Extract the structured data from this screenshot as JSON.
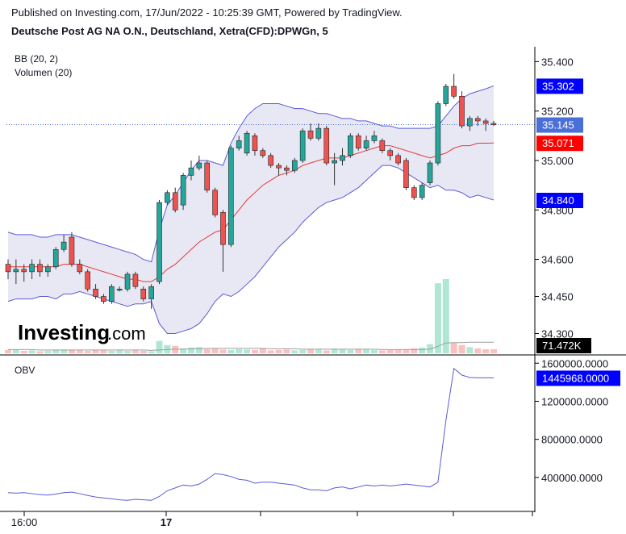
{
  "header": {
    "published": "Published on Investing.com, 17/Jun/2022 - 10:25:39 GMT, Powered by TradingView.",
    "title": "Deutsche Post AG NA O.N., Deutschland, Xetra(CFD):DPWGn, 5"
  },
  "indicators": {
    "bb": "BB (20, 2)",
    "volume": "Volumen (20)",
    "obv": "OBV"
  },
  "logo": {
    "bold": "Investing",
    "light": ".com"
  },
  "chart_data": {
    "type": "candlestick",
    "price_axis": {
      "min": 34.22,
      "max": 35.46,
      "ticks": [
        "35.400",
        "35.200",
        "35.000",
        "34.800",
        "34.600",
        "34.450",
        "34.300"
      ]
    },
    "x_ticks": [
      "16:00",
      "17"
    ],
    "tags": {
      "bb_upper": "35.302",
      "last_price": "35.145",
      "bb_basis": "35.071",
      "bb_lower": "34.840",
      "volume": "71.472K",
      "obv": "1445968.0000"
    },
    "colors": {
      "up": "#26a69a",
      "down": "#ef5350",
      "bb_band": "#5b5bd6",
      "bb_fill": "#e8e8f4",
      "basis": "#e53935",
      "obv": "#5b5bd6",
      "tag_blue": "#0000ff",
      "tag_red": "#ff0000",
      "tag_black": "#000000",
      "tag_last": "#4a6fd8"
    },
    "candles": [
      {
        "o": 34.58,
        "h": 34.6,
        "l": 34.52,
        "c": 34.55
      },
      {
        "o": 34.55,
        "h": 34.6,
        "l": 34.5,
        "c": 34.56
      },
      {
        "o": 34.56,
        "h": 34.58,
        "l": 34.51,
        "c": 34.55
      },
      {
        "o": 34.55,
        "h": 34.6,
        "l": 34.52,
        "c": 34.58
      },
      {
        "o": 34.58,
        "h": 34.6,
        "l": 34.53,
        "c": 34.55
      },
      {
        "o": 34.55,
        "h": 34.58,
        "l": 34.53,
        "c": 34.57
      },
      {
        "o": 34.57,
        "h": 34.65,
        "l": 34.56,
        "c": 34.64
      },
      {
        "o": 34.64,
        "h": 34.7,
        "l": 34.63,
        "c": 34.67
      },
      {
        "o": 34.69,
        "h": 34.71,
        "l": 34.57,
        "c": 34.58
      },
      {
        "o": 34.58,
        "h": 34.6,
        "l": 34.54,
        "c": 34.55
      },
      {
        "o": 34.55,
        "h": 34.56,
        "l": 34.47,
        "c": 34.48
      },
      {
        "o": 34.48,
        "h": 34.5,
        "l": 34.44,
        "c": 34.45
      },
      {
        "o": 34.45,
        "h": 34.46,
        "l": 34.42,
        "c": 34.43
      },
      {
        "o": 34.43,
        "h": 34.5,
        "l": 34.42,
        "c": 34.49
      },
      {
        "o": 34.48,
        "h": 34.49,
        "l": 34.47,
        "c": 34.48
      },
      {
        "o": 34.48,
        "h": 34.55,
        "l": 34.47,
        "c": 34.54
      },
      {
        "o": 34.54,
        "h": 34.55,
        "l": 34.48,
        "c": 34.49
      },
      {
        "o": 34.48,
        "h": 34.49,
        "l": 34.43,
        "c": 34.44
      },
      {
        "o": 34.44,
        "h": 34.5,
        "l": 34.4,
        "c": 34.49
      },
      {
        "o": 34.51,
        "h": 34.84,
        "l": 34.5,
        "c": 34.83
      },
      {
        "o": 34.83,
        "h": 34.88,
        "l": 34.82,
        "c": 34.87
      },
      {
        "o": 34.87,
        "h": 34.89,
        "l": 34.79,
        "c": 34.8
      },
      {
        "o": 34.82,
        "h": 34.95,
        "l": 34.8,
        "c": 34.94
      },
      {
        "o": 34.94,
        "h": 35.0,
        "l": 34.92,
        "c": 34.97
      },
      {
        "o": 34.97,
        "h": 35.02,
        "l": 34.96,
        "c": 34.99
      },
      {
        "o": 34.99,
        "h": 35.0,
        "l": 34.87,
        "c": 34.88
      },
      {
        "o": 34.88,
        "h": 34.89,
        "l": 34.77,
        "c": 34.78
      },
      {
        "o": 34.79,
        "h": 34.8,
        "l": 34.55,
        "c": 34.66
      },
      {
        "o": 34.66,
        "h": 35.06,
        "l": 34.65,
        "c": 35.05
      },
      {
        "o": 35.05,
        "h": 35.1,
        "l": 35.04,
        "c": 35.08
      },
      {
        "o": 35.03,
        "h": 35.12,
        "l": 35.02,
        "c": 35.11
      },
      {
        "o": 35.1,
        "h": 35.11,
        "l": 35.02,
        "c": 35.04
      },
      {
        "o": 35.04,
        "h": 35.05,
        "l": 35.01,
        "c": 35.02
      },
      {
        "o": 35.02,
        "h": 35.03,
        "l": 34.97,
        "c": 34.98
      },
      {
        "o": 34.98,
        "h": 34.99,
        "l": 34.94,
        "c": 34.97
      },
      {
        "o": 34.97,
        "h": 34.98,
        "l": 34.94,
        "c": 34.96
      },
      {
        "o": 34.96,
        "h": 35.01,
        "l": 34.95,
        "c": 35.0
      },
      {
        "o": 35.0,
        "h": 35.13,
        "l": 34.99,
        "c": 35.12
      },
      {
        "o": 35.12,
        "h": 35.15,
        "l": 35.08,
        "c": 35.09
      },
      {
        "o": 35.09,
        "h": 35.15,
        "l": 35.08,
        "c": 35.13
      },
      {
        "o": 35.13,
        "h": 35.14,
        "l": 34.98,
        "c": 34.99
      },
      {
        "o": 34.99,
        "h": 35.03,
        "l": 34.9,
        "c": 35.0
      },
      {
        "o": 35.0,
        "h": 35.05,
        "l": 34.98,
        "c": 35.02
      },
      {
        "o": 35.02,
        "h": 35.11,
        "l": 35.01,
        "c": 35.1
      },
      {
        "o": 35.1,
        "h": 35.11,
        "l": 35.04,
        "c": 35.05
      },
      {
        "o": 35.05,
        "h": 35.1,
        "l": 35.04,
        "c": 35.08
      },
      {
        "o": 35.08,
        "h": 35.12,
        "l": 35.07,
        "c": 35.1
      },
      {
        "o": 35.08,
        "h": 35.09,
        "l": 35.03,
        "c": 35.04
      },
      {
        "o": 35.04,
        "h": 35.05,
        "l": 35.0,
        "c": 35.02
      },
      {
        "o": 35.02,
        "h": 35.03,
        "l": 34.98,
        "c": 34.99
      },
      {
        "o": 35.0,
        "h": 35.01,
        "l": 34.88,
        "c": 34.89
      },
      {
        "o": 34.89,
        "h": 34.9,
        "l": 34.84,
        "c": 34.85
      },
      {
        "o": 34.85,
        "h": 34.91,
        "l": 34.84,
        "c": 34.9
      },
      {
        "o": 34.91,
        "h": 35.0,
        "l": 34.9,
        "c": 34.99
      },
      {
        "o": 34.99,
        "h": 35.24,
        "l": 34.98,
        "c": 35.23
      },
      {
        "o": 35.23,
        "h": 35.31,
        "l": 35.22,
        "c": 35.3
      },
      {
        "o": 35.3,
        "h": 35.35,
        "l": 35.25,
        "c": 35.26
      },
      {
        "o": 35.26,
        "h": 35.28,
        "l": 35.13,
        "c": 35.14
      },
      {
        "o": 35.14,
        "h": 35.18,
        "l": 35.12,
        "c": 35.17
      },
      {
        "o": 35.17,
        "h": 35.18,
        "l": 35.14,
        "c": 35.16
      },
      {
        "o": 35.16,
        "h": 35.17,
        "l": 35.12,
        "c": 35.15
      },
      {
        "o": 35.15,
        "h": 35.16,
        "l": 35.14,
        "c": 35.145
      }
    ],
    "bb_upper": [
      34.71,
      34.7,
      34.7,
      34.7,
      34.69,
      34.69,
      34.7,
      34.7,
      34.7,
      34.69,
      34.68,
      34.67,
      34.66,
      34.65,
      34.64,
      34.63,
      34.62,
      34.6,
      34.59,
      34.72,
      34.82,
      34.86,
      34.91,
      34.96,
      35.0,
      35.0,
      34.99,
      34.98,
      35.07,
      35.13,
      35.18,
      35.21,
      35.23,
      35.23,
      35.23,
      35.22,
      35.21,
      35.21,
      35.2,
      35.19,
      35.19,
      35.18,
      35.17,
      35.17,
      35.16,
      35.16,
      35.15,
      35.14,
      35.14,
      35.13,
      35.13,
      35.13,
      35.13,
      35.13,
      35.14,
      35.18,
      35.22,
      35.25,
      35.27,
      35.28,
      35.29,
      35.302
    ],
    "bb_basis": [
      34.57,
      34.57,
      34.57,
      34.57,
      34.57,
      34.57,
      34.57,
      34.58,
      34.58,
      34.58,
      34.57,
      34.56,
      34.55,
      34.54,
      34.53,
      34.52,
      34.52,
      34.51,
      34.51,
      34.53,
      34.56,
      34.58,
      34.61,
      34.64,
      34.67,
      34.69,
      34.71,
      34.72,
      34.76,
      34.8,
      34.84,
      34.87,
      34.9,
      34.92,
      34.94,
      34.95,
      34.96,
      34.98,
      34.99,
      35.0,
      35.01,
      35.01,
      35.01,
      35.02,
      35.03,
      35.04,
      35.05,
      35.06,
      35.06,
      35.05,
      35.04,
      35.03,
      35.02,
      35.01,
      35.02,
      35.03,
      35.05,
      35.06,
      35.06,
      35.07,
      35.07,
      35.071
    ],
    "bb_lower": [
      34.43,
      34.44,
      34.44,
      34.44,
      34.45,
      34.45,
      34.44,
      34.46,
      34.46,
      34.47,
      34.46,
      34.45,
      34.44,
      34.43,
      34.42,
      34.41,
      34.42,
      34.42,
      34.43,
      34.34,
      34.3,
      34.3,
      34.31,
      34.32,
      34.34,
      34.38,
      34.43,
      34.46,
      34.45,
      34.47,
      34.5,
      34.53,
      34.57,
      34.61,
      34.65,
      34.68,
      34.71,
      34.75,
      34.78,
      34.81,
      34.83,
      34.84,
      34.85,
      34.87,
      34.89,
      34.92,
      34.95,
      34.98,
      34.98,
      34.97,
      34.95,
      34.93,
      34.91,
      34.89,
      34.9,
      34.88,
      34.88,
      34.87,
      34.85,
      34.86,
      34.85,
      34.84
    ],
    "volume": [
      8,
      9,
      6,
      7,
      5,
      6,
      8,
      9,
      8,
      7,
      6,
      8,
      7,
      6,
      7,
      6,
      7,
      6,
      5,
      30,
      20,
      18,
      12,
      14,
      15,
      10,
      12,
      9,
      8,
      10,
      9,
      8,
      11,
      7,
      8,
      9,
      7,
      8,
      10,
      9,
      7,
      11,
      9,
      8,
      10,
      9,
      8,
      7,
      8,
      9,
      10,
      12,
      14,
      22,
      170,
      180,
      25,
      20,
      15,
      12,
      10,
      10
    ],
    "volume_ma": [
      9,
      9,
      9,
      9,
      8,
      8,
      8,
      8,
      8,
      8,
      8,
      8,
      8,
      8,
      8,
      8,
      8,
      8,
      7,
      8,
      9,
      10,
      10,
      11,
      11,
      12,
      12,
      12,
      12,
      12,
      12,
      12,
      12,
      11,
      11,
      11,
      11,
      10,
      10,
      10,
      10,
      10,
      10,
      10,
      10,
      10,
      10,
      9,
      9,
      9,
      9,
      9,
      9,
      10,
      17,
      25,
      26,
      26,
      27,
      27,
      27,
      27
    ],
    "obv": [
      240000,
      235000,
      240000,
      230000,
      220000,
      215000,
      225000,
      240000,
      245000,
      230000,
      210000,
      195000,
      185000,
      175000,
      165000,
      160000,
      170000,
      165000,
      160000,
      200000,
      260000,
      290000,
      320000,
      310000,
      330000,
      380000,
      440000,
      430000,
      410000,
      380000,
      370000,
      340000,
      350000,
      350000,
      340000,
      330000,
      320000,
      290000,
      270000,
      270000,
      260000,
      290000,
      300000,
      280000,
      300000,
      320000,
      310000,
      320000,
      310000,
      320000,
      330000,
      320000,
      310000,
      300000,
      350000,
      1000000,
      1545000,
      1475000,
      1450000,
      1446000,
      1446000,
      1445968
    ],
    "obv_axis": {
      "min": 60000,
      "max": 1670000,
      "ticks": [
        "1600000.0000",
        "1200000.0000",
        "800000.0000",
        "400000.0000"
      ]
    }
  }
}
